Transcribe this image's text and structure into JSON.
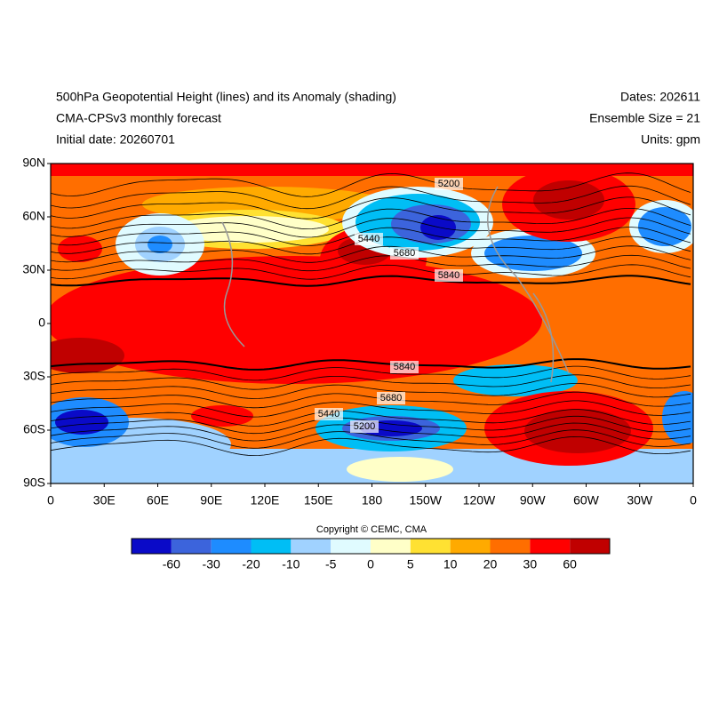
{
  "header": {
    "title": "500hPa Geopotential Height (lines) and its Anomaly (shading)",
    "subtitle": "CMA-CPSv3 monthly forecast",
    "initial_date": "Initial date: 20260701",
    "dates": "Dates: 202611",
    "ensemble": "Ensemble Size = 21",
    "units": "Units: gpm"
  },
  "map": {
    "lat_labels": [
      "90N",
      "60N",
      "30N",
      "0",
      "30S",
      "60S",
      "90S"
    ],
    "lon_labels": [
      "0",
      "30E",
      "60E",
      "90E",
      "120E",
      "150E",
      "180",
      "150W",
      "120W",
      "90W",
      "60W",
      "30W",
      "0"
    ],
    "contour_labels": [
      5200,
      5440,
      5680,
      5840,
      5840,
      5680,
      5440,
      5200
    ]
  },
  "copyright": "Copyright © CEMC, CMA",
  "colorbar": {
    "labels": [
      -60,
      -30,
      -20,
      -10,
      -5,
      0,
      5,
      10,
      20,
      30,
      60
    ],
    "colors": [
      "#0a0ac8",
      "#3c64dc",
      "#1e8cff",
      "#00bef5",
      "#a0d2ff",
      "#e0fbff",
      "#ffffc8",
      "#ffe132",
      "#ffaa00",
      "#ff6e00",
      "#ff0000",
      "#c00000"
    ]
  }
}
